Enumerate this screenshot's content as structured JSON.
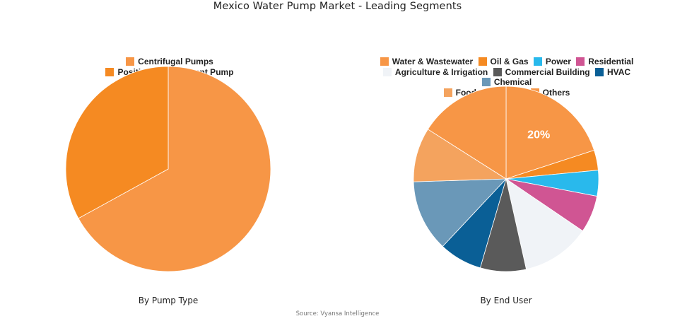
{
  "title": "Mexico Water Pump Market - Leading Segments",
  "source": "Source: Vyansa Intelligence",
  "chart_data": [
    {
      "type": "pie",
      "title": "By Pump Type",
      "legend_position": "top",
      "categories": [
        "Centrifugal Pumps",
        "Positive Displacement Pump"
      ],
      "values": [
        67,
        33
      ],
      "colors": [
        "#f79646",
        "#f58a22"
      ],
      "data_labels": []
    },
    {
      "type": "pie",
      "title": "By End User",
      "legend_position": "top",
      "categories": [
        "Water & Wastewater",
        "Oil & Gas",
        "Power",
        "Residential",
        "Agriculture & Irrigation",
        "Commercial Building",
        "HVAC",
        "Chemical",
        "Food & Beverage",
        "Others"
      ],
      "values": [
        20,
        3.5,
        4.5,
        6.5,
        12,
        8,
        7.5,
        12.5,
        9.5,
        16
      ],
      "colors": [
        "#f79646",
        "#f58a22",
        "#29b9ec",
        "#d05593",
        "#f0f3f7",
        "#5a5a5a",
        "#0a5f96",
        "#6a98b8",
        "#f4a35e",
        "#f79646"
      ],
      "data_labels": [
        {
          "index": 0,
          "text": "20%"
        }
      ]
    }
  ],
  "legend_left": [
    {
      "label": "Centrifugal Pumps",
      "color": "#f79646"
    },
    {
      "label": "Positive Displacement Pump",
      "color": "#f58a22"
    }
  ],
  "legend_right": [
    {
      "label": "Water & Wastewater",
      "color": "#f79646"
    },
    {
      "label": "Oil & Gas",
      "color": "#f58a22"
    },
    {
      "label": "Power",
      "color": "#29b9ec"
    },
    {
      "label": "Residential",
      "color": "#d05593"
    },
    {
      "label": "Agriculture & Irrigation",
      "color": "#f0f3f7"
    },
    {
      "label": "Commercial Building",
      "color": "#5a5a5a"
    },
    {
      "label": "HVAC",
      "color": "#0a5f96"
    },
    {
      "label": "Chemical",
      "color": "#6a98b8"
    },
    {
      "label": "Food & Beverage",
      "color": "#f4a35e"
    },
    {
      "label": "Others",
      "color": "#f79646"
    }
  ],
  "captions": {
    "left": "By Pump Type",
    "right": "By End User"
  }
}
